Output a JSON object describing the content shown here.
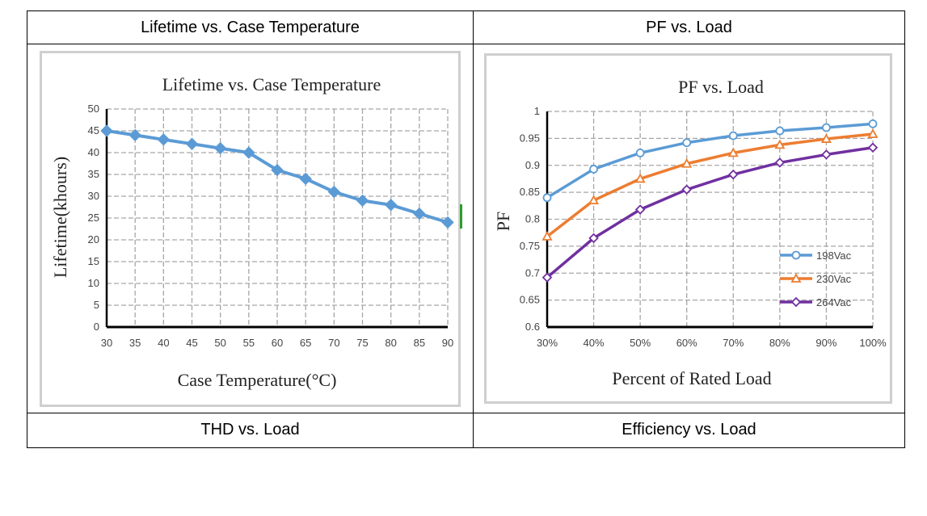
{
  "table": {
    "cells": [
      {
        "title": "Lifetime vs. Case Temperature"
      },
      {
        "title": "PF vs. Load"
      },
      {
        "title": "THD vs. Load"
      },
      {
        "title": "Efficiency vs. Load"
      }
    ]
  },
  "chart_data": [
    {
      "type": "line",
      "title": "Lifetime vs. Case Temperature",
      "xlabel": "Case Temperature(°C)",
      "ylabel": "Lifetime(khours)",
      "x": [
        30,
        35,
        40,
        45,
        50,
        55,
        60,
        65,
        70,
        75,
        80,
        85,
        90
      ],
      "x_tick_labels": [
        "30",
        "35",
        "40",
        "45",
        "50",
        "55",
        "60",
        "65",
        "70",
        "75",
        "80",
        "85",
        "90"
      ],
      "ylim": [
        0,
        50
      ],
      "y_ticks": [
        "0",
        "5",
        "10",
        "15",
        "20",
        "25",
        "30",
        "35",
        "40",
        "45",
        "50"
      ],
      "grid": true,
      "series": [
        {
          "name": "Lifetime",
          "color": "#5b9bd5",
          "values": [
            45,
            44,
            43,
            42,
            41,
            40,
            36,
            34,
            31,
            29,
            28,
            26,
            24
          ]
        }
      ]
    },
    {
      "type": "line",
      "title": "PF vs. Load",
      "xlabel": "Percent of Rated Load",
      "ylabel": "PF",
      "categories": [
        "30%",
        "40%",
        "50%",
        "60%",
        "70%",
        "80%",
        "90%",
        "100%"
      ],
      "ylim": [
        0.6,
        1
      ],
      "y_ticks": [
        "0.6",
        "0.65",
        "0.7",
        "0.75",
        "0.8",
        "0.85",
        "0.9",
        "0.95",
        "1"
      ],
      "grid": true,
      "legend": "right",
      "series": [
        {
          "name": "198Vac",
          "color": "#5b9bd5",
          "marker": "circle",
          "values": [
            0.84,
            0.893,
            0.923,
            0.942,
            0.955,
            0.964,
            0.97,
            0.977
          ]
        },
        {
          "name": "230Vac",
          "color": "#ed7d31",
          "marker": "triangle",
          "values": [
            0.768,
            0.835,
            0.875,
            0.903,
            0.923,
            0.938,
            0.949,
            0.958
          ]
        },
        {
          "name": "264Vac",
          "color": "#7030a0",
          "marker": "diamond",
          "values": [
            0.692,
            0.765,
            0.818,
            0.855,
            0.883,
            0.905,
            0.92,
            0.933
          ]
        }
      ]
    }
  ]
}
